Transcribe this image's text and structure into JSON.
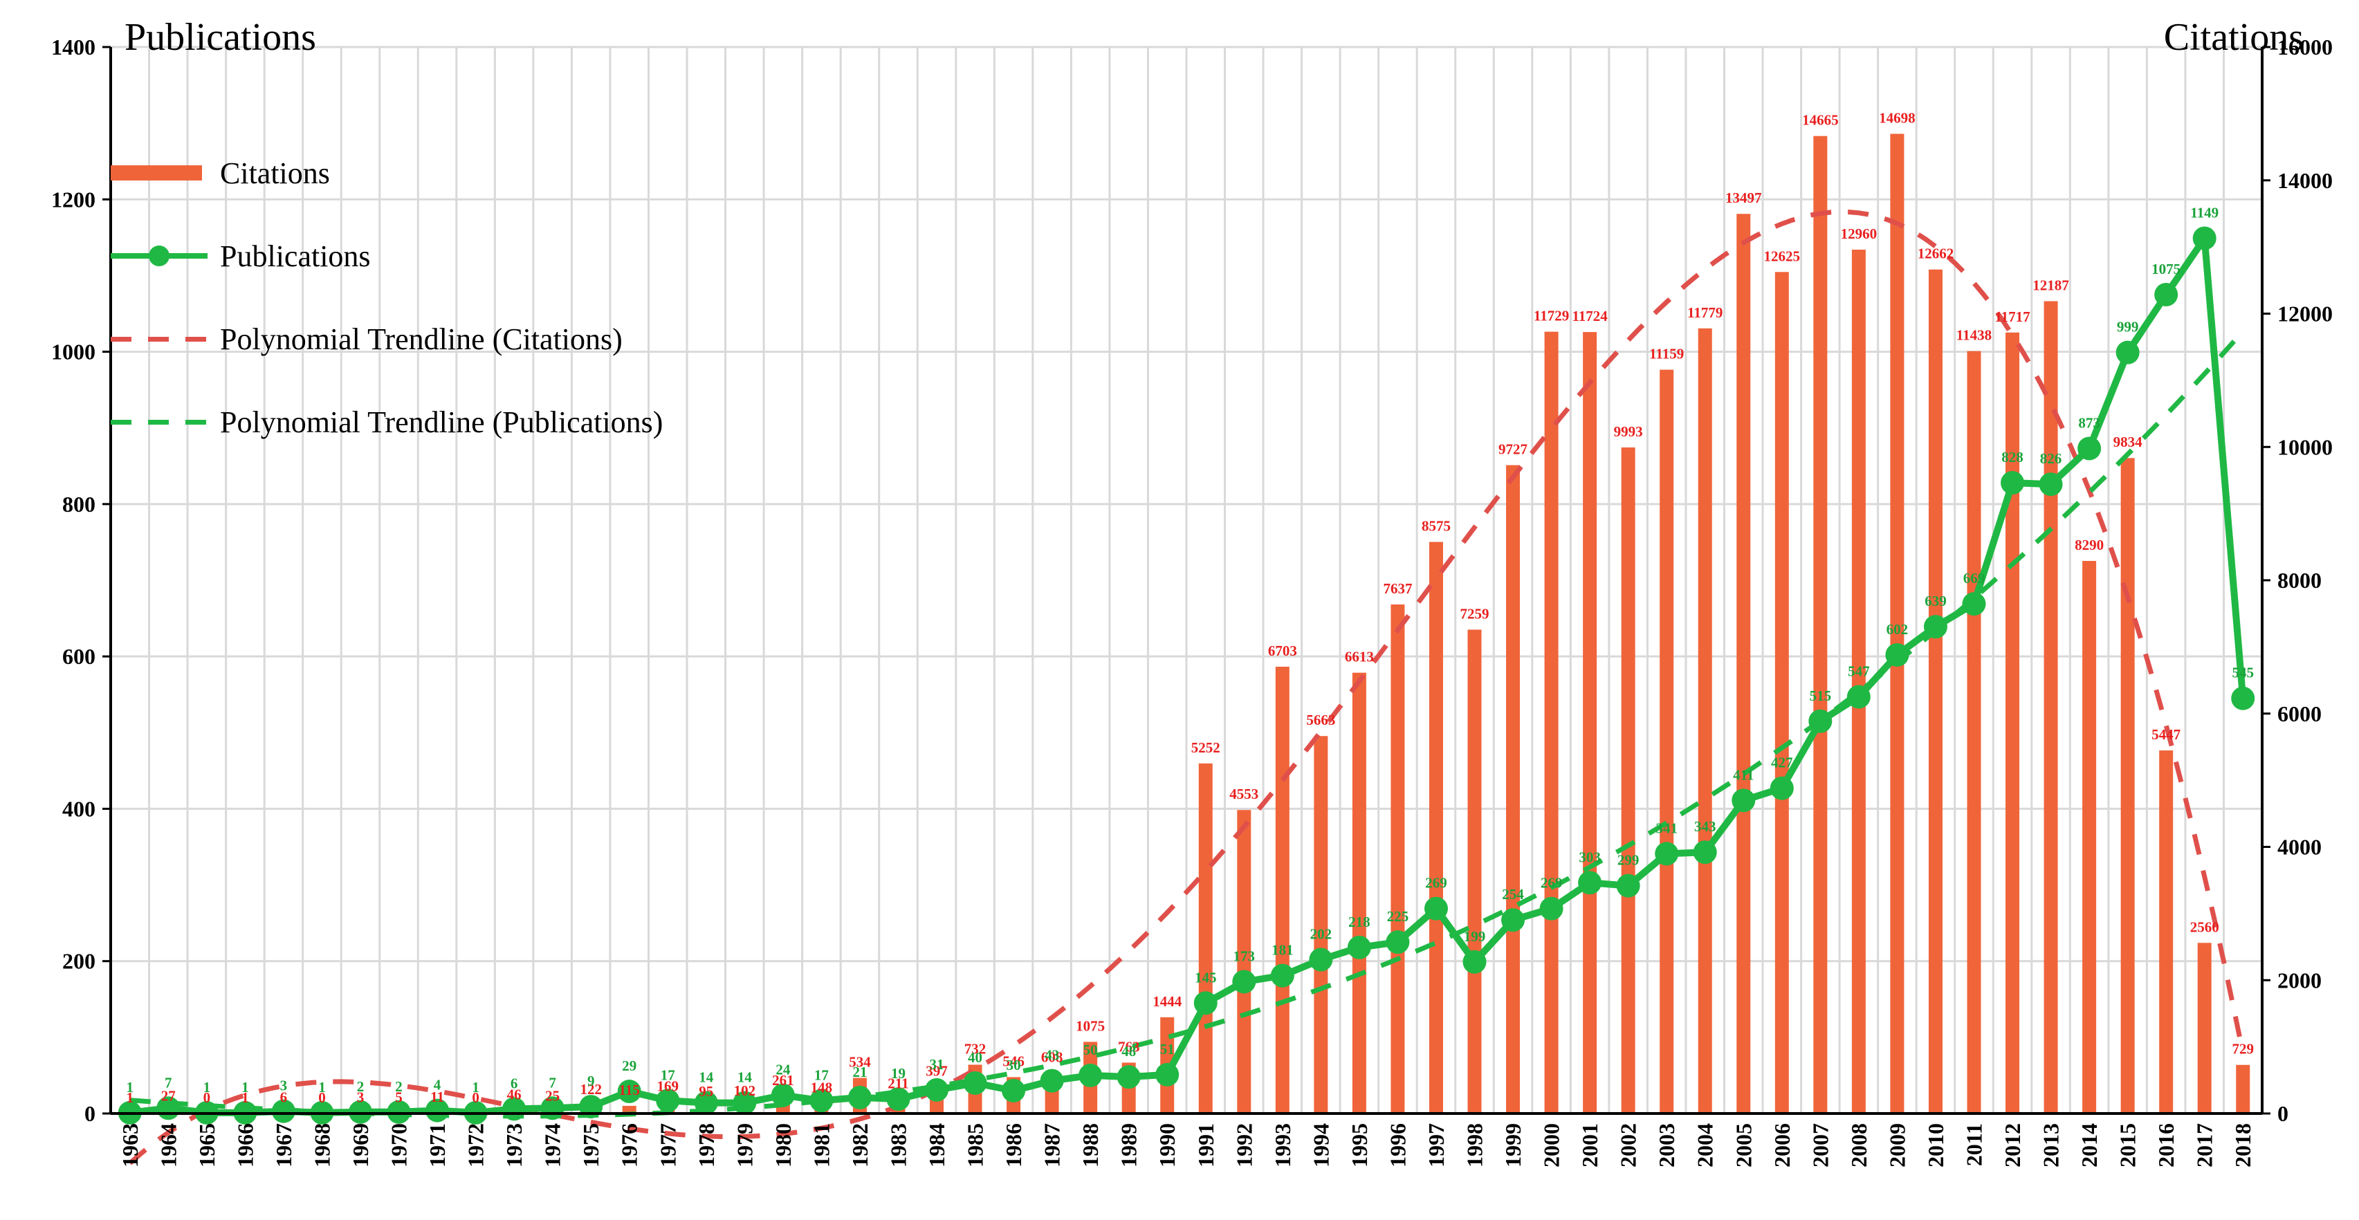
{
  "chart_data": {
    "type": "bar+line",
    "categories": [
      "1963",
      "1964",
      "1965",
      "1966",
      "1967",
      "1968",
      "1969",
      "1970",
      "1971",
      "1972",
      "1973",
      "1974",
      "1975",
      "1976",
      "1977",
      "1978",
      "1979",
      "1980",
      "1981",
      "1982",
      "1983",
      "1984",
      "1985",
      "1986",
      "1987",
      "1988",
      "1989",
      "1990",
      "1991",
      "1992",
      "1993",
      "1994",
      "1995",
      "1996",
      "1997",
      "1998",
      "1999",
      "2000",
      "2001",
      "2002",
      "2003",
      "2004",
      "2005",
      "2006",
      "2007",
      "2008",
      "2009",
      "2010",
      "2011",
      "2012",
      "2013",
      "2014",
      "2015",
      "2016",
      "2017",
      "2018"
    ],
    "series": [
      {
        "name": "Citations",
        "type": "bar",
        "axis": "right",
        "color": "#f0643a",
        "values": [
          1,
          27,
          0,
          1,
          6,
          0,
          3,
          5,
          11,
          0,
          46,
          25,
          122,
          115,
          169,
          95,
          102,
          261,
          148,
          534,
          211,
          397,
          732,
          546,
          608,
          1075,
          763,
          1444,
          5252,
          4553,
          6703,
          5663,
          6613,
          7637,
          8575,
          7259,
          9727,
          11729,
          11724,
          9993,
          11159,
          11779,
          13497,
          12625,
          14665,
          12960,
          14698,
          12662,
          11438,
          11717,
          12187,
          8290,
          9834,
          5447,
          2560,
          729
        ]
      },
      {
        "name": "Publications",
        "type": "line",
        "axis": "left",
        "color": "#20b844",
        "values": [
          1,
          7,
          1,
          1,
          3,
          1,
          2,
          2,
          4,
          1,
          6,
          7,
          9,
          29,
          17,
          14,
          14,
          24,
          17,
          21,
          19,
          31,
          40,
          30,
          43,
          50,
          48,
          51,
          145,
          173,
          181,
          202,
          218,
          225,
          269,
          199,
          254,
          269,
          303,
          299,
          341,
          343,
          411,
          427,
          515,
          547,
          602,
          639,
          669,
          828,
          826,
          873,
          999,
          1075,
          1149,
          545
        ]
      }
    ],
    "legend": [
      "Citations",
      "Publications",
      "Polynomial Trendline (Citations)",
      "Polynomial Trendline (Publications)"
    ],
    "left_axis": {
      "title": "Publications",
      "ylim": [
        0,
        1400
      ],
      "ticks": [
        0,
        200,
        400,
        600,
        800,
        1000,
        1200,
        1400
      ]
    },
    "right_axis": {
      "title": "Citations",
      "ylim": [
        0,
        16000
      ],
      "ticks": [
        0,
        2000,
        4000,
        6000,
        8000,
        10000,
        12000,
        14000,
        16000
      ]
    },
    "grid": true
  },
  "colors": {
    "citations": "#f0643a",
    "publications": "#20b844",
    "trend_citations": "#e0504b",
    "trend_publications": "#20b844",
    "citation_labels": "#e8201f",
    "publication_labels": "#1aa33a"
  }
}
